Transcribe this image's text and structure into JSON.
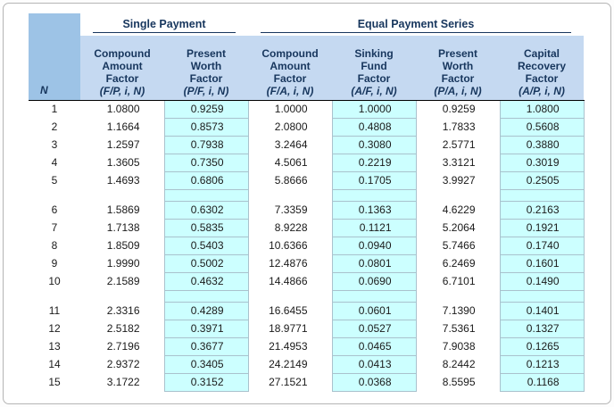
{
  "colors": {
    "n_block_fill": "#9dc3e6",
    "header_fill": "#c5d9f1",
    "highlight_column_fill": "#ccffff",
    "header_text": "#17365d",
    "body_text": "#1a1a1a"
  },
  "chart_data": {
    "type": "table",
    "n_label": "N",
    "groups": [
      {
        "label": "Single Payment"
      },
      {
        "label": "Equal Payment Series"
      }
    ],
    "columns": [
      {
        "label": "Compound\nAmount\nFactor",
        "formula": "(F/P, i, N)"
      },
      {
        "label": "Present\nWorth\nFactor",
        "formula": "(P/F, i, N)"
      },
      {
        "label": "Compound\nAmount\nFactor",
        "formula": "(F/A, i, N)"
      },
      {
        "label": "Sinking\nFund\nFactor",
        "formula": "(A/F, i, N)"
      },
      {
        "label": "Present\nWorth\nFactor",
        "formula": "(P/A, i, N)"
      },
      {
        "label": "Capital\nRecovery\nFactor",
        "formula": "(A/P, i, N)"
      }
    ],
    "rows": [
      {
        "n": "1",
        "values": [
          "1.0800",
          "0.9259",
          "1.0000",
          "1.0000",
          "0.9259",
          "1.0800"
        ]
      },
      {
        "n": "2",
        "values": [
          "1.1664",
          "0.8573",
          "2.0800",
          "0.4808",
          "1.7833",
          "0.5608"
        ]
      },
      {
        "n": "3",
        "values": [
          "1.2597",
          "0.7938",
          "3.2464",
          "0.3080",
          "2.5771",
          "0.3880"
        ]
      },
      {
        "n": "4",
        "values": [
          "1.3605",
          "0.7350",
          "4.5061",
          "0.2219",
          "3.3121",
          "0.3019"
        ]
      },
      {
        "n": "5",
        "values": [
          "1.4693",
          "0.6806",
          "5.8666",
          "0.1705",
          "3.9927",
          "0.2505"
        ]
      },
      {
        "gap": true
      },
      {
        "n": "6",
        "values": [
          "1.5869",
          "0.6302",
          "7.3359",
          "0.1363",
          "4.6229",
          "0.2163"
        ]
      },
      {
        "n": "7",
        "values": [
          "1.7138",
          "0.5835",
          "8.9228",
          "0.1121",
          "5.2064",
          "0.1921"
        ]
      },
      {
        "n": "8",
        "values": [
          "1.8509",
          "0.5403",
          "10.6366",
          "0.0940",
          "5.7466",
          "0.1740"
        ]
      },
      {
        "n": "9",
        "values": [
          "1.9990",
          "0.5002",
          "12.4876",
          "0.0801",
          "6.2469",
          "0.1601"
        ]
      },
      {
        "n": "10",
        "values": [
          "2.1589",
          "0.4632",
          "14.4866",
          "0.0690",
          "6.7101",
          "0.1490"
        ]
      },
      {
        "gap": true
      },
      {
        "n": "11",
        "values": [
          "2.3316",
          "0.4289",
          "16.6455",
          "0.0601",
          "7.1390",
          "0.1401"
        ]
      },
      {
        "n": "12",
        "values": [
          "2.5182",
          "0.3971",
          "18.9771",
          "0.0527",
          "7.5361",
          "0.1327"
        ]
      },
      {
        "n": "13",
        "values": [
          "2.7196",
          "0.3677",
          "21.4953",
          "0.0465",
          "7.9038",
          "0.1265"
        ]
      },
      {
        "n": "14",
        "values": [
          "2.9372",
          "0.3405",
          "24.2149",
          "0.0413",
          "8.2442",
          "0.1213"
        ]
      },
      {
        "n": "15",
        "values": [
          "3.1722",
          "0.3152",
          "27.1521",
          "0.0368",
          "8.5595",
          "0.1168"
        ]
      }
    ]
  }
}
